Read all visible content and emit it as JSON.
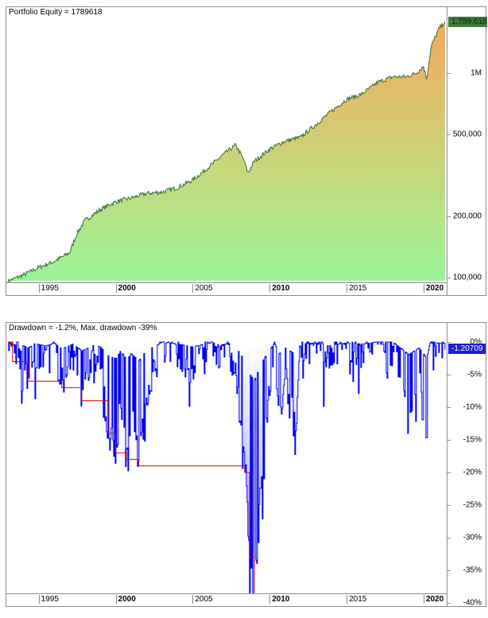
{
  "equity_panel": {
    "title": "Portfolio Equity = 1789618",
    "last_value_badge": "1,789,618",
    "y_ticks": [
      "1M",
      "500,000",
      "200,000",
      "100,000"
    ],
    "x_ticks": [
      {
        "label": "1995",
        "bold": false
      },
      {
        "label": "2000",
        "bold": true
      },
      {
        "label": "2005",
        "bold": false
      },
      {
        "label": "2010",
        "bold": true
      },
      {
        "label": "2015",
        "bold": false
      },
      {
        "label": "2020",
        "bold": true
      }
    ],
    "colors": {
      "line": "#3a6e3a",
      "fill_bottom": "#98f598",
      "fill_top": "#f5a85a",
      "badge": "#3d7a3d"
    }
  },
  "drawdown_panel": {
    "title": "Drawdown = -1.2%, Max. drawdown -39%",
    "last_value_badge": "-1.20709",
    "y_ticks": [
      "0%",
      "-5%",
      "-10%",
      "-15%",
      "-20%",
      "-25%",
      "-30%",
      "-35%",
      "-40%"
    ],
    "x_ticks": [
      {
        "label": "1995",
        "bold": false
      },
      {
        "label": "2000",
        "bold": true
      },
      {
        "label": "2005",
        "bold": false
      },
      {
        "label": "2010",
        "bold": true
      },
      {
        "label": "2015",
        "bold": false
      },
      {
        "label": "2020",
        "bold": true
      }
    ],
    "colors": {
      "line": "#0000ee",
      "fill": "#8c8cf0",
      "max_dd_line": "#dd0000",
      "badge": "#1c1cdc"
    }
  },
  "chart_data": [
    {
      "type": "area",
      "title": "Portfolio Equity = 1789618",
      "xlabel": "",
      "ylabel": "",
      "y_scale": "log",
      "ylim": [
        90000,
        1900000
      ],
      "x": [
        1993.0,
        1994.0,
        1995.0,
        1996.0,
        1997.0,
        1997.5,
        1998.0,
        1999.0,
        2000.0,
        2001.0,
        2002.0,
        2003.0,
        2004.0,
        2005.0,
        2006.0,
        2007.0,
        2007.8,
        2008.3,
        2008.6,
        2009.0,
        2010.0,
        2011.0,
        2012.0,
        2013.0,
        2014.0,
        2015.0,
        2016.0,
        2017.0,
        2018.0,
        2018.9,
        2019.5,
        2020.0,
        2020.2,
        2020.5,
        2021.0,
        2021.4
      ],
      "series": [
        {
          "name": "Portfolio Equity",
          "values": [
            96000,
            103000,
            112000,
            120000,
            132000,
            165000,
            190000,
            215000,
            235000,
            245000,
            258000,
            262000,
            275000,
            300000,
            345000,
            400000,
            445000,
            380000,
            325000,
            370000,
            425000,
            465000,
            485000,
            560000,
            650000,
            745000,
            790000,
            900000,
            960000,
            960000,
            1000000,
            1080000,
            940000,
            1350000,
            1650000,
            1789618
          ]
        }
      ],
      "y_ticks": [
        "100,000",
        "200,000",
        "500,000",
        "1M"
      ],
      "x_ticks": [
        "1995",
        "2000",
        "2005",
        "2010",
        "2015",
        "2020"
      ],
      "annotations": [
        "1,789,618"
      ],
      "legend": "none",
      "grid": false
    },
    {
      "type": "area",
      "title": "Drawdown = -1.2%, Max. drawdown -39%",
      "xlabel": "",
      "ylabel": "",
      "ylim": [
        -40,
        0
      ],
      "x": [
        1993.0,
        1993.3,
        1993.6,
        1994.3,
        1994.8,
        1995.5,
        1996.0,
        1996.5,
        1997.2,
        1997.8,
        1998.6,
        1999.0,
        1999.5,
        2000.0,
        2000.3,
        2000.7,
        2001.0,
        2001.5,
        2002.0,
        2002.6,
        2003.0,
        2004.0,
        2005.0,
        2006.0,
        2006.8,
        2007.5,
        2008.0,
        2008.4,
        2008.7,
        2009.0,
        2009.5,
        2010.3,
        2010.6,
        2011.0,
        2011.7,
        2012.0,
        2013.0,
        2014.0,
        2015.0,
        2016.0,
        2017.0,
        2018.0,
        2018.8,
        2019.0,
        2019.7,
        2020.2,
        2020.4,
        2020.8,
        2021.4
      ],
      "series": [
        {
          "name": "Drawdown %",
          "values": [
            0,
            -3,
            -1,
            -6,
            -2,
            -4,
            -1,
            -7,
            -2,
            -9,
            -3,
            -5,
            -14,
            -17,
            -9,
            -18,
            -12,
            -19,
            -8,
            -4,
            0,
            -2,
            -5,
            -1,
            -3,
            -1,
            -10,
            -20,
            -33,
            -39,
            -20,
            -1,
            -12,
            -6,
            -13,
            -2,
            -1,
            -3,
            -1,
            -2,
            0,
            0,
            -10,
            -13,
            -6,
            -17,
            -1,
            -1,
            -1.2
          ]
        },
        {
          "name": "Max. drawdown %",
          "values": [
            0,
            -3,
            -3,
            -6,
            -6,
            -6,
            -6,
            -7,
            -7,
            -9,
            -9,
            -9,
            -14,
            -17,
            -17,
            -18,
            -18,
            -19,
            -19,
            -19,
            -19,
            -19,
            -19,
            -19,
            -19,
            -19,
            -19,
            -20,
            -33,
            -39,
            -39,
            -39,
            -39,
            -39,
            -39,
            -39,
            -39,
            -39,
            -39,
            -39,
            -39,
            -39,
            -39,
            -39,
            -39,
            -39,
            -39,
            -39,
            -39
          ]
        }
      ],
      "y_ticks": [
        "0%",
        "-5%",
        "-10%",
        "-15%",
        "-20%",
        "-25%",
        "-30%",
        "-35%",
        "-40%"
      ],
      "x_ticks": [
        "1995",
        "2000",
        "2005",
        "2010",
        "2015",
        "2020"
      ],
      "annotations": [
        "-1.20709"
      ],
      "legend": "none",
      "grid": false
    }
  ]
}
